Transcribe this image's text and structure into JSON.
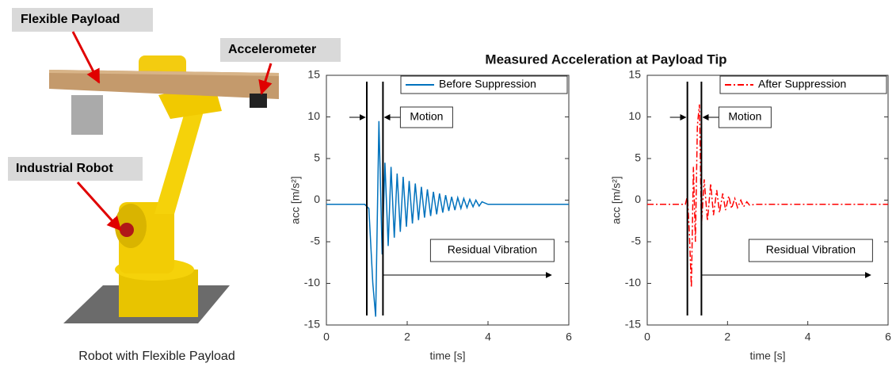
{
  "title": "Measured Acceleration at Payload Tip",
  "photo": {
    "labels": [
      "Flexible Payload",
      "Accelerometer",
      "Industrial Robot"
    ],
    "caption": "Robot with Flexible Payload"
  },
  "chart_data": [
    {
      "type": "line",
      "xlabel": "time [s]",
      "ylabel": "acc [m/s²]",
      "xlim": [
        0,
        6
      ],
      "ylim": [
        -15,
        15
      ],
      "xticks": [
        0,
        2,
        4,
        6
      ],
      "yticks": [
        -15,
        -10,
        -5,
        0,
        5,
        10,
        15
      ],
      "vlines": [
        1.0,
        1.4
      ],
      "annotations": [
        "Motion",
        "Residual Vibration"
      ],
      "legend": "upper right",
      "series": [
        {
          "name": "Before Suppression",
          "color": "#0072bd",
          "line_style": "solid",
          "x": [
            0,
            0.95,
            1.05,
            1.15,
            1.22,
            1.3,
            1.38,
            1.45,
            1.53,
            1.6,
            1.68,
            1.75,
            1.83,
            1.9,
            1.98,
            2.05,
            2.13,
            2.2,
            2.28,
            2.35,
            2.43,
            2.5,
            2.58,
            2.65,
            2.73,
            2.8,
            2.88,
            2.95,
            3.03,
            3.1,
            3.18,
            3.25,
            3.33,
            3.4,
            3.48,
            3.55,
            3.63,
            3.7,
            3.78,
            3.85,
            4.0,
            6.0
          ],
          "values": [
            -0.5,
            -0.5,
            -1,
            -10,
            -14,
            9.5,
            -6.5,
            4.5,
            -5.5,
            4,
            -4.5,
            3.2,
            -3.8,
            2.8,
            -3.2,
            2.3,
            -2.8,
            2,
            -2.4,
            1.6,
            -2.1,
            1.3,
            -1.9,
            1.0,
            -1.7,
            0.8,
            -1.5,
            0.6,
            -1.3,
            0.4,
            -1.2,
            0.3,
            -1.0,
            0.2,
            -0.9,
            0.1,
            -0.8,
            0,
            -0.7,
            -0.2,
            -0.5,
            -0.5
          ]
        }
      ]
    },
    {
      "type": "line",
      "xlabel": "time [s]",
      "ylabel": "acc [m/s²]",
      "xlim": [
        0,
        6
      ],
      "ylim": [
        -15,
        15
      ],
      "xticks": [
        0,
        2,
        4,
        6
      ],
      "yticks": [
        -15,
        -10,
        -5,
        0,
        5,
        10,
        15
      ],
      "vlines": [
        1.0,
        1.35
      ],
      "annotations": [
        "Motion",
        "Residual Vibration"
      ],
      "legend": "upper right",
      "series": [
        {
          "name": "After Suppression",
          "color": "#ff0000",
          "line_style": "dashdot",
          "x": [
            0,
            0.95,
            1.0,
            1.05,
            1.1,
            1.15,
            1.2,
            1.25,
            1.3,
            1.35,
            1.42,
            1.5,
            1.58,
            1.65,
            1.73,
            1.8,
            1.88,
            1.95,
            2.03,
            2.1,
            2.18,
            2.25,
            2.33,
            2.4,
            2.48,
            2.55,
            2.7,
            6.0
          ],
          "values": [
            -0.5,
            -0.5,
            0.5,
            -4,
            -10.5,
            4,
            -5,
            9,
            11.5,
            -3,
            2.5,
            -2.5,
            2,
            -1.8,
            1.2,
            -1.5,
            0.8,
            -1.2,
            0.5,
            -1,
            0.2,
            -0.9,
            0,
            -0.8,
            -0.2,
            -0.6,
            -0.5,
            -0.5
          ]
        }
      ]
    }
  ]
}
